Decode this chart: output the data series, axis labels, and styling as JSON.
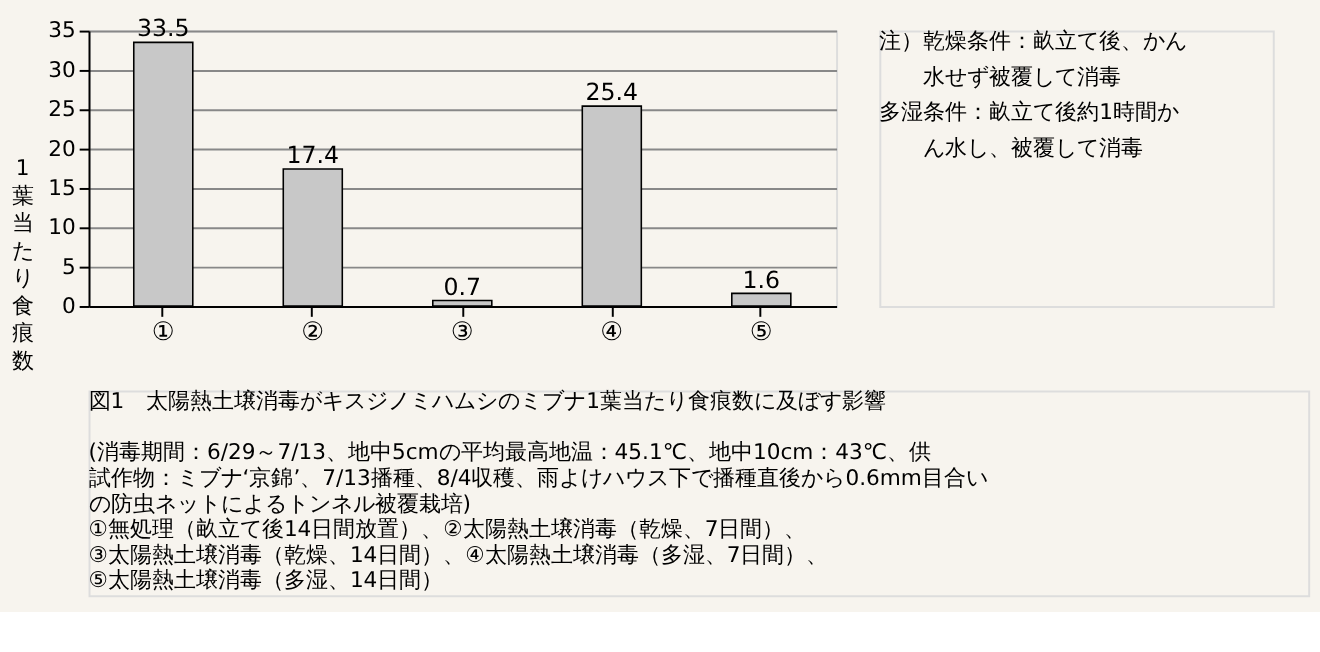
{
  "chart_data": {
    "type": "bar",
    "title": "図1　太陽熱土壌消毒がキスジノミハムシのミブナ1葉当たり食痕数に及ぼす影響",
    "ylabel": "1葉当たり食痕数",
    "categories": [
      "①",
      "②",
      "③",
      "④",
      "⑤"
    ],
    "values": [
      33.5,
      17.4,
      0.7,
      25.4,
      1.6
    ],
    "color": "#c8c8c8",
    "ylim": [
      0,
      35
    ],
    "yticks": [
      0,
      5,
      10,
      15,
      20,
      25,
      30,
      35
    ],
    "grid": "y",
    "data_labels": true,
    "annotations": [
      "注）乾燥条件：畝立て後、かん水せず被覆して消毒",
      "多湿条件：畝立て後約1時間かん水し、被覆して消毒",
      "(消毒期間：6/29～7/13、地中5cmの平均最高地温：45.1℃、地中10cm：43℃、供試作物：ミブナ‘京錦’、7/13播種、8/4収穫、雨よけハウス下で播種直後から0.6mm目合いの防虫ネットによるトンネル被覆栽培)",
      "①無処理（畝立て後14日間放置）、②太陽熱土壌消毒（乾燥、7日間）、",
      "③太陽熱土壌消毒（乾燥、14日間）、④太陽熱土壌消毒（多湿、7日間）、",
      "⑤太陽熱土壌消毒（多湿、14日間）"
    ]
  }
}
